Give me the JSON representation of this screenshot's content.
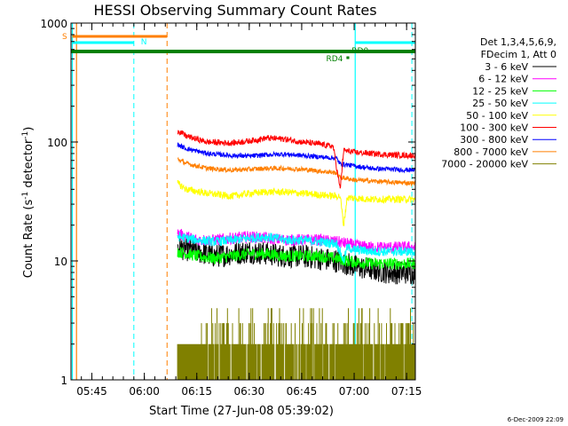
{
  "chart_data": {
    "type": "line",
    "title": "HESSI Observing Summary Count Rates",
    "xlabel": "Start Time (27-Jun-08 05:39:02)",
    "ylabel_main": "Count Rate (s",
    "ylabel_sup1": "-1",
    "ylabel_mid": " detector",
    "ylabel_sup2": "-1",
    "ylabel_end": ")",
    "y_scale": "log",
    "ylim": [
      1,
      1000
    ],
    "xlim_minutes": [
      39.03,
      137.5
    ],
    "y_ticks": [
      {
        "value": 1,
        "label": "1"
      },
      {
        "value": 10,
        "label": "10"
      },
      {
        "value": 100,
        "label": "100"
      },
      {
        "value": 1000,
        "label": "1000"
      }
    ],
    "x_ticks": [
      {
        "minute": 45,
        "label": "05:45"
      },
      {
        "minute": 60,
        "label": "06:00"
      },
      {
        "minute": 75,
        "label": "06:15"
      },
      {
        "minute": 90,
        "label": "06:30"
      },
      {
        "minute": 105,
        "label": "06:45"
      },
      {
        "minute": 120,
        "label": "07:00"
      },
      {
        "minute": 135,
        "label": "07:15"
      }
    ],
    "legend": {
      "header1": "Det 1,3,4,5,6,9,",
      "header2": "FDecim 1, Att 0",
      "position": "right"
    },
    "series": [
      {
        "name": "3 - 6 keV",
        "color": "#000000",
        "start": 69.5,
        "end": 137.5,
        "values": [
          [
            69.5,
            13
          ],
          [
            75,
            12
          ],
          [
            80,
            11
          ],
          [
            85,
            11.5
          ],
          [
            90,
            12
          ],
          [
            95,
            11.5
          ],
          [
            100,
            11
          ],
          [
            105,
            11
          ],
          [
            110,
            10.5
          ],
          [
            115,
            10
          ],
          [
            118,
            9.5
          ],
          [
            120,
            9
          ],
          [
            125,
            8.5
          ],
          [
            130,
            8
          ],
          [
            137,
            8
          ]
        ],
        "noise": 0.1
      },
      {
        "name": "6 - 12 keV",
        "color": "#ff00ff",
        "start": 69.5,
        "end": 137.5,
        "values": [
          [
            69.5,
            17
          ],
          [
            75,
            15
          ],
          [
            80,
            15
          ],
          [
            85,
            15.5
          ],
          [
            90,
            16
          ],
          [
            95,
            15.5
          ],
          [
            100,
            15
          ],
          [
            105,
            15
          ],
          [
            110,
            15
          ],
          [
            115,
            14.5
          ],
          [
            118,
            14
          ],
          [
            120,
            13.5
          ],
          [
            125,
            13
          ],
          [
            130,
            13
          ],
          [
            137,
            13
          ]
        ],
        "noise": 0.05
      },
      {
        "name": "12 - 25 keV",
        "color": "#00ff00",
        "start": 69.5,
        "end": 137.5,
        "values": [
          [
            69.5,
            12
          ],
          [
            75,
            11
          ],
          [
            80,
            10.5
          ],
          [
            85,
            11
          ],
          [
            90,
            11.5
          ],
          [
            95,
            11.5
          ],
          [
            100,
            11
          ],
          [
            105,
            11
          ],
          [
            110,
            11
          ],
          [
            115,
            10.5
          ],
          [
            118,
            10
          ],
          [
            120,
            9.8
          ],
          [
            125,
            9.5
          ],
          [
            130,
            9.5
          ],
          [
            137,
            9.5
          ]
        ],
        "noise": 0.05
      },
      {
        "name": "25 - 50 keV",
        "color": "#00ffff",
        "start": 69.5,
        "end": 137.5,
        "values": [
          [
            69.5,
            16
          ],
          [
            75,
            15
          ],
          [
            80,
            14.5
          ],
          [
            85,
            15
          ],
          [
            90,
            15.5
          ],
          [
            95,
            16
          ],
          [
            100,
            15
          ],
          [
            105,
            15
          ],
          [
            110,
            14.5
          ],
          [
            115,
            14
          ],
          [
            117,
            10
          ],
          [
            118,
            13
          ],
          [
            120,
            12.5
          ],
          [
            125,
            12
          ],
          [
            130,
            12
          ],
          [
            137,
            12
          ]
        ],
        "noise": 0.04
      },
      {
        "name": "50 - 100 keV",
        "color": "#ffff00",
        "start": 69.5,
        "end": 137.5,
        "values": [
          [
            69.5,
            45
          ],
          [
            72,
            40
          ],
          [
            78,
            37
          ],
          [
            85,
            35
          ],
          [
            90,
            37
          ],
          [
            95,
            38
          ],
          [
            100,
            38
          ],
          [
            105,
            37
          ],
          [
            110,
            36
          ],
          [
            115,
            35
          ],
          [
            116,
            35
          ],
          [
            117,
            20
          ],
          [
            118,
            34
          ],
          [
            125,
            33
          ],
          [
            130,
            33
          ],
          [
            137,
            33
          ]
        ],
        "noise": 0.03
      },
      {
        "name": "100 - 300 keV",
        "color": "#ff0000",
        "start": 69.5,
        "end": 137.5,
        "values": [
          [
            69.5,
            125
          ],
          [
            72,
            112
          ],
          [
            78,
            100
          ],
          [
            85,
            98
          ],
          [
            90,
            102
          ],
          [
            95,
            108
          ],
          [
            100,
            106
          ],
          [
            105,
            100
          ],
          [
            110,
            96
          ],
          [
            114,
            92
          ],
          [
            116,
            40
          ],
          [
            117,
            85
          ],
          [
            120,
            82
          ],
          [
            125,
            80
          ],
          [
            130,
            78
          ],
          [
            137,
            77
          ]
        ],
        "noise": 0.025
      },
      {
        "name": "300 - 800 keV",
        "color": "#0000ff",
        "start": 69.5,
        "end": 137.5,
        "values": [
          [
            69.5,
            95
          ],
          [
            72,
            88
          ],
          [
            78,
            80
          ],
          [
            85,
            77
          ],
          [
            90,
            76
          ],
          [
            95,
            78
          ],
          [
            100,
            79
          ],
          [
            105,
            77
          ],
          [
            110,
            75
          ],
          [
            115,
            73
          ],
          [
            116,
            65
          ],
          [
            117,
            65
          ],
          [
            120,
            63
          ],
          [
            125,
            60
          ],
          [
            130,
            59
          ],
          [
            137,
            58
          ]
        ],
        "noise": 0.02
      },
      {
        "name": "800 - 7000 keV",
        "color": "#ff7f00",
        "start": 69.5,
        "end": 137.5,
        "values": [
          [
            69.5,
            72
          ],
          [
            72,
            66
          ],
          [
            78,
            60
          ],
          [
            85,
            58
          ],
          [
            90,
            59
          ],
          [
            95,
            60
          ],
          [
            100,
            60
          ],
          [
            105,
            59
          ],
          [
            110,
            57
          ],
          [
            115,
            55
          ],
          [
            116,
            50
          ],
          [
            117,
            50
          ],
          [
            120,
            48
          ],
          [
            125,
            47
          ],
          [
            130,
            46
          ],
          [
            137,
            45
          ]
        ],
        "noise": 0.02
      },
      {
        "name": "7000 - 20000 keV",
        "color": "#808000",
        "start": 69.5,
        "end": 137.5,
        "values": [
          [
            69.5,
            2
          ],
          [
            137,
            2
          ]
        ],
        "noise": 0
      }
    ],
    "markers": [
      {
        "label": "S",
        "color": "#ff7f00"
      },
      {
        "label": "N",
        "color": "#00ffff"
      },
      {
        "label": "RD0",
        "color": "#008000"
      },
      {
        "label": "RD4",
        "color": "#008000"
      }
    ],
    "timestamp": "6-Dec-2009 22:09"
  }
}
